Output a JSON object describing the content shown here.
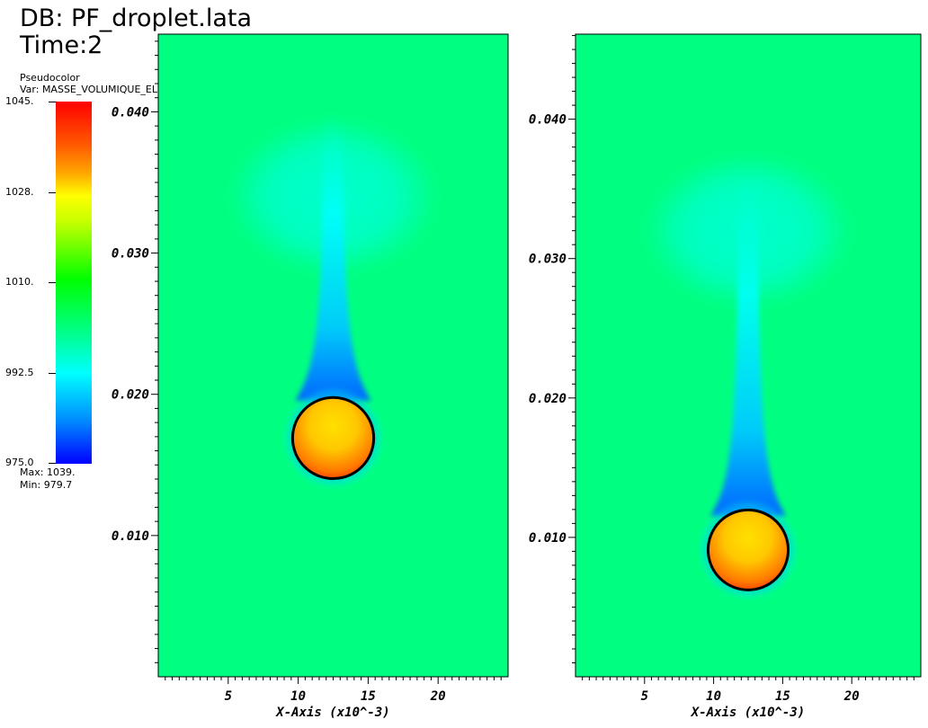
{
  "header": {
    "db": "DB: PF_droplet.lata",
    "time": "Time:2"
  },
  "legend": {
    "plot_type": "Pseudocolor",
    "variable": "Var: MASSE_VOLUMIQUE_ELEM_dom",
    "ticks": [
      {
        "label": "1045.",
        "value": 1045
      },
      {
        "label": "1028.",
        "value": 1027.5
      },
      {
        "label": "1010.",
        "value": 1010
      },
      {
        "label": "992.5",
        "value": 992.5
      },
      {
        "label": "975.0",
        "value": 975
      }
    ],
    "range": [
      975,
      1045
    ],
    "max_text": "Max:  1039.",
    "min_text": "Min:  979.7",
    "colormap": "hot-to-cold (red, yellow, green, cyan, blue)"
  },
  "chart_data": [
    {
      "type": "heatmap",
      "field": "MASSE_VOLUMIQUE_ELEM_dom",
      "xlabel": "X-Axis (x10^-3)",
      "xlim": [
        0,
        25
      ],
      "ylim": [
        0,
        0.0455
      ],
      "x_ticks": [
        {
          "label": "5",
          "value": 5
        },
        {
          "label": "10",
          "value": 10
        },
        {
          "label": "15",
          "value": 15
        },
        {
          "label": "20",
          "value": 20
        }
      ],
      "y_ticks": [
        {
          "label": "0.010",
          "value": 0.01
        },
        {
          "label": "0.020",
          "value": 0.02
        },
        {
          "label": "0.030",
          "value": 0.03
        },
        {
          "label": "0.040",
          "value": 0.04
        }
      ],
      "background_value": 1000,
      "droplet": {
        "x": 12.5,
        "y": 0.0169,
        "radius": 2.9,
        "value": 1035
      },
      "wake": {
        "x": 12.5,
        "y_bottom": 0.0205,
        "y_top": 0.04,
        "min_value": 979.7
      },
      "plume_cap": {
        "x": 12.5,
        "y": 0.034,
        "half_width": 7.5,
        "value": 994
      }
    },
    {
      "type": "heatmap",
      "field": "MASSE_VOLUMIQUE_ELEM_dom",
      "xlabel": "X-Axis (x10^-3)",
      "xlim": [
        0,
        25
      ],
      "ylim": [
        0,
        0.0461
      ],
      "x_ticks": [
        {
          "label": "5",
          "value": 5
        },
        {
          "label": "10",
          "value": 10
        },
        {
          "label": "15",
          "value": 15
        },
        {
          "label": "20",
          "value": 20
        }
      ],
      "y_ticks": [
        {
          "label": "0.010",
          "value": 0.01
        },
        {
          "label": "0.020",
          "value": 0.02
        },
        {
          "label": "0.030",
          "value": 0.03
        },
        {
          "label": "0.040",
          "value": 0.04
        }
      ],
      "background_value": 1000,
      "droplet": {
        "x": 12.5,
        "y": 0.0091,
        "radius": 2.9,
        "value": 1035
      },
      "wake": {
        "x": 12.5,
        "y_bottom": 0.0125,
        "y_top": 0.036,
        "min_value": 979.7
      },
      "plume_cap": {
        "x": 12.5,
        "y": 0.032,
        "half_width": 7.5,
        "value": 994
      }
    }
  ],
  "colors": {
    "background_field": "#00ff80",
    "wake_light": "#00ffd2",
    "wake_core": "#00ffff",
    "wake_dark": "#0064ff",
    "droplet_core": "#ffc800",
    "droplet_edge": "#ff4b00",
    "interface": "#000000"
  }
}
